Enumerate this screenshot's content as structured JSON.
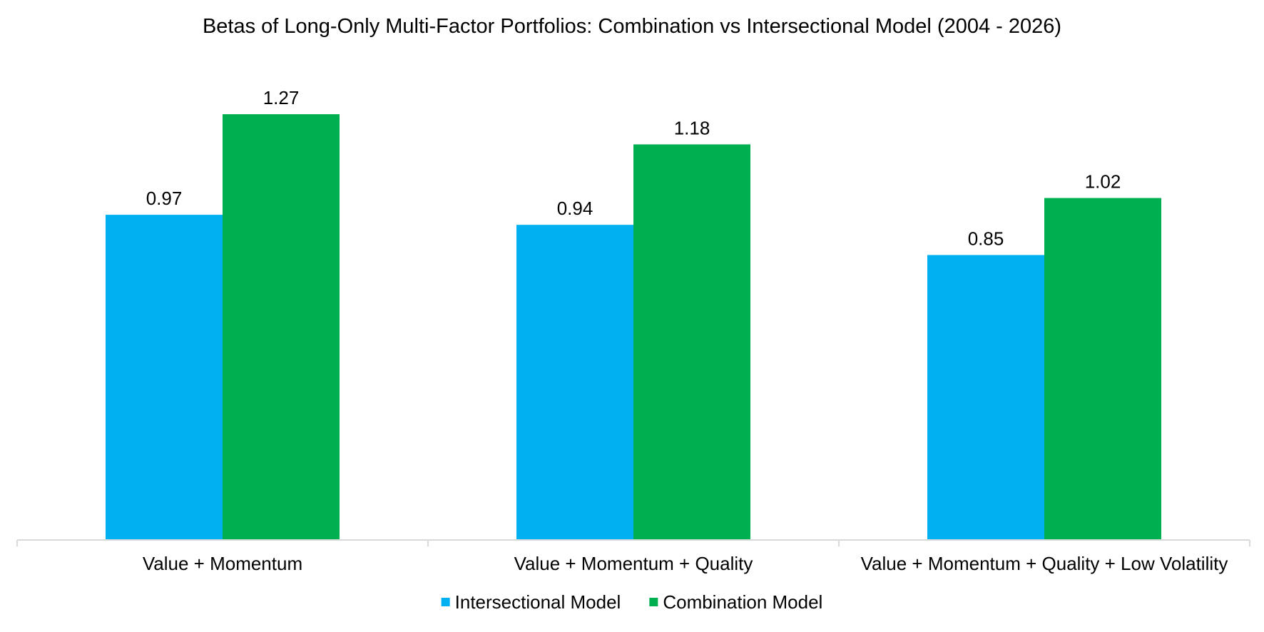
{
  "chart_data": {
    "type": "bar",
    "title": "Betas of Long-Only Multi-Factor Portfolios: Combination vs Intersectional Model (2004 - 2026)",
    "categories": [
      "Value + Momentum",
      "Value + Momentum + Quality",
      "Value + Momentum + Quality + Low Volatility"
    ],
    "series": [
      {
        "name": "Intersectional Model",
        "color": "#00B0F0",
        "values": [
          0.97,
          0.94,
          0.85
        ],
        "labels": [
          "0.97",
          "0.94",
          "0.85"
        ]
      },
      {
        "name": "Combination Model",
        "color": "#00B050",
        "values": [
          1.27,
          1.18,
          1.02
        ],
        "labels": [
          "1.27",
          "1.18",
          "1.02"
        ]
      }
    ],
    "xlabel": "",
    "ylabel": "",
    "ylim": [
      0,
      1.4
    ],
    "y_axis_visible": false,
    "grid": false,
    "legend_position": "bottom",
    "axis_color": "#D9D9D9"
  }
}
